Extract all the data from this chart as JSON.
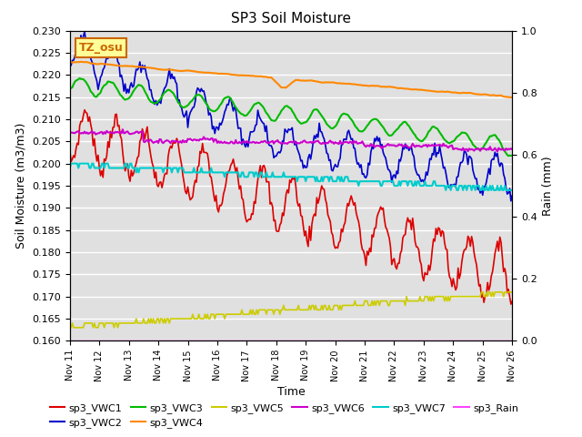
{
  "title": "SP3 Soil Moisture",
  "xlabel": "Time",
  "ylabel_left": "Soil Moisture (m3/m3)",
  "ylabel_right": "Rain (mm)",
  "ylim_left": [
    0.16,
    0.23
  ],
  "ylim_right": [
    0.0,
    1.0
  ],
  "xtick_labels": [
    "Nov 11",
    "Nov 12",
    "Nov 13",
    "Nov 14",
    "Nov 15",
    "Nov 16",
    "Nov 17",
    "Nov 18",
    "Nov 19",
    "Nov 20",
    "Nov 21",
    "Nov 22",
    "Nov 23",
    "Nov 24",
    "Nov 25",
    "Nov 26"
  ],
  "annotation_text": "TZ_osu",
  "annotation_color": "#cc6600",
  "annotation_bg": "#ffff99",
  "bg_color": "#e0e0e0",
  "series": {
    "sp3_VWC1": {
      "color": "#dd0000",
      "lw": 1.2
    },
    "sp3_VWC2": {
      "color": "#0000cc",
      "lw": 1.2
    },
    "sp3_VWC3": {
      "color": "#00bb00",
      "lw": 1.5
    },
    "sp3_VWC4": {
      "color": "#ff8800",
      "lw": 1.5
    },
    "sp3_VWC5": {
      "color": "#cccc00",
      "lw": 1.2
    },
    "sp3_VWC6": {
      "color": "#cc00cc",
      "lw": 1.5
    },
    "sp3_VWC7": {
      "color": "#00cccc",
      "lw": 1.5
    },
    "sp3_Rain": {
      "color": "#ff44ff",
      "lw": 1.0
    }
  }
}
